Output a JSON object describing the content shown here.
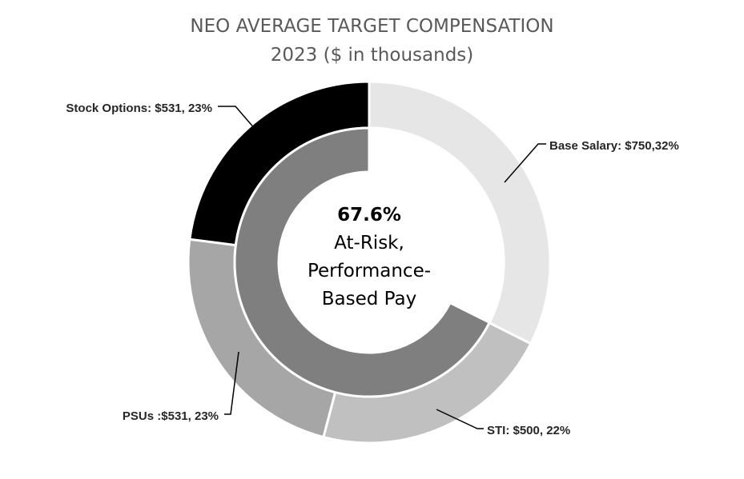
{
  "chart_data": {
    "type": "pie",
    "title_line1": "NEO AVERAGE TARGET COMPENSATION",
    "title_line2": "2023 ($ in thousands)",
    "center": {
      "value": "67.6%",
      "line1": "At-Risk,",
      "line2": "Performance-",
      "line3": "Based Pay"
    },
    "outer_ring": {
      "slices": [
        {
          "label": "Base Salary: $750,32%",
          "value": 750,
          "percent": 32,
          "color": "#e6e6e6"
        },
        {
          "label": "STI: $500, 22%",
          "value": 500,
          "percent": 22,
          "color": "#c0c0c0"
        },
        {
          "label": "PSUs :$531, 23%",
          "value": 531,
          "percent": 23,
          "color": "#a6a6a6"
        },
        {
          "label": "Stock Options: $531, 23%",
          "value": 531,
          "percent": 23,
          "color": "#000000"
        }
      ]
    },
    "inner_ring": {
      "slices": [
        {
          "percent": 32.4,
          "color": "#ffffff"
        },
        {
          "percent": 67.6,
          "color": "#7f7f7f"
        }
      ]
    }
  }
}
